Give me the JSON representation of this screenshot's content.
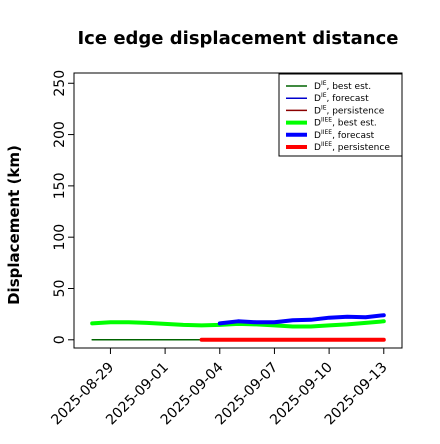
{
  "chart_data": {
    "type": "line",
    "title": "Ice edge displacement distance",
    "xlabel": "",
    "ylabel": "Displacement (km)",
    "x_ticks": [
      "2025-08-29",
      "2025-09-01",
      "2025-09-04",
      "2025-09-07",
      "2025-09-10",
      "2025-09-13"
    ],
    "x_tick_highlight": "2025-09-04",
    "x_tick_highlight_color": "#228B22",
    "xlim": [
      "2025-08-27",
      "2025-09-14"
    ],
    "ylim": [
      -8,
      260
    ],
    "y_ticks": [
      0,
      50,
      100,
      150,
      200,
      250
    ],
    "grid": false,
    "legend_position": "top-right",
    "series": [
      {
        "legend_main": "D",
        "legend_sup": "IE",
        "legend_suffix": ", best est.",
        "color": "#006400",
        "width": "thin",
        "x": [
          "2025-08-28",
          "2025-08-29",
          "2025-08-30",
          "2025-08-31",
          "2025-09-01",
          "2025-09-02",
          "2025-09-03"
        ],
        "y": [
          0,
          0,
          0,
          0,
          0,
          0,
          0
        ]
      },
      {
        "legend_main": "D",
        "legend_sup": "IE",
        "legend_suffix": ", forecast",
        "color": "#0000cd",
        "width": "thin",
        "x": [],
        "y": []
      },
      {
        "legend_main": "D",
        "legend_sup": "IE",
        "legend_suffix": ", persistence",
        "color": "#8b0000",
        "width": "thin",
        "x": [],
        "y": []
      },
      {
        "legend_main": "D",
        "legend_sup": "IIEE",
        "legend_suffix": ", best est.",
        "color": "#00ff00",
        "width": "thick",
        "x": [
          "2025-08-28",
          "2025-08-29",
          "2025-08-30",
          "2025-08-31",
          "2025-09-01",
          "2025-09-02",
          "2025-09-03",
          "2025-09-04",
          "2025-09-05",
          "2025-09-06",
          "2025-09-07",
          "2025-09-08",
          "2025-09-09",
          "2025-09-10",
          "2025-09-11",
          "2025-09-12",
          "2025-09-13"
        ],
        "y": [
          16,
          17,
          17,
          16.5,
          15.5,
          14.5,
          14,
          14.5,
          15.5,
          15,
          14,
          13,
          13,
          14,
          15,
          16.5,
          18
        ]
      },
      {
        "legend_main": "D",
        "legend_sup": "IIEE",
        "legend_suffix": ", forecast",
        "color": "#0000ff",
        "width": "thick",
        "x": [
          "2025-09-04",
          "2025-09-05",
          "2025-09-06",
          "2025-09-07",
          "2025-09-08",
          "2025-09-09",
          "2025-09-10",
          "2025-09-11",
          "2025-09-12",
          "2025-09-13"
        ],
        "y": [
          16,
          18,
          17,
          17,
          19,
          19.5,
          21.5,
          22.5,
          22,
          24
        ]
      },
      {
        "legend_main": "D",
        "legend_sup": "IIEE",
        "legend_suffix": ", persistence",
        "color": "#ff0000",
        "width": "thick",
        "x": [
          "2025-09-03",
          "2025-09-04",
          "2025-09-05",
          "2025-09-06",
          "2025-09-07",
          "2025-09-08",
          "2025-09-09",
          "2025-09-10",
          "2025-09-11",
          "2025-09-12",
          "2025-09-13"
        ],
        "y": [
          0,
          0,
          0,
          0,
          0,
          0,
          0,
          0,
          0,
          0,
          0
        ]
      }
    ]
  }
}
